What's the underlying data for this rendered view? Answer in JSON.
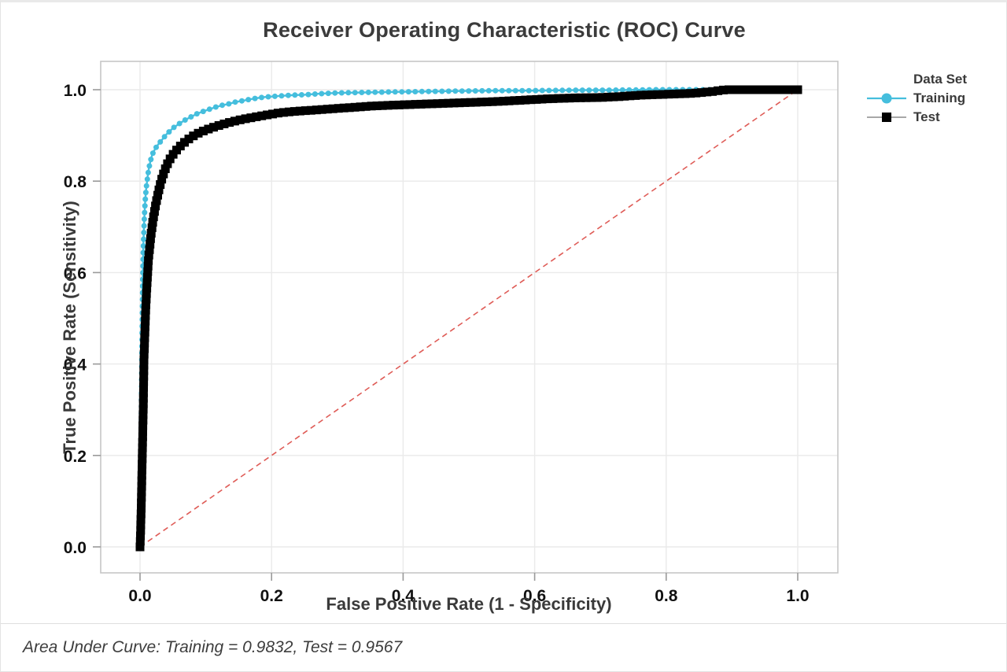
{
  "title": "Receiver Operating Characteristic (ROC) Curve",
  "footnote": "Area Under Curve: Training = 0.9832, Test = 0.9567",
  "legend": {
    "title": "Data Set",
    "entries": [
      {
        "label": "Training",
        "marker": "circle",
        "marker_color": "#45BEDD",
        "line_color": "#45BEDD"
      },
      {
        "label": "Test",
        "marker": "square",
        "marker_color": "#000000",
        "line_color": "#8C8C8C"
      }
    ]
  },
  "chart_data": {
    "type": "line",
    "title": "Receiver Operating Characteristic (ROC) Curve",
    "xlabel": "False Positive Rate (1 - Specificity)",
    "ylabel": "True Positive Rate (Sensitivity)",
    "xlim": [
      0,
      1
    ],
    "ylim": [
      0,
      1
    ],
    "grid": true,
    "legend_position": "right",
    "x_ticks": [
      0.0,
      0.2,
      0.4,
      0.6,
      0.8,
      1.0
    ],
    "y_ticks": [
      0.0,
      0.2,
      0.4,
      0.6,
      0.8,
      1.0
    ],
    "x_tick_labels": [
      "0.0",
      "0.2",
      "0.4",
      "0.6",
      "0.8",
      "1.0"
    ],
    "y_tick_labels": [
      "0.0",
      "0.2",
      "0.4",
      "0.6",
      "0.8",
      "1.0"
    ],
    "colors": {
      "grid": "#eaeaea",
      "panel_border": "#c6c6c6",
      "tick": "#9a9a9a",
      "tick_label": "#111111",
      "diagonal": "#DF5C57"
    },
    "reference_line": {
      "style": "dashed",
      "color": "#DF5C57",
      "from": [
        0,
        0
      ],
      "to": [
        1,
        1
      ]
    },
    "auc": {
      "Training": 0.9832,
      "Test": 0.9567
    },
    "series": [
      {
        "name": "Training",
        "marker": "circle",
        "marker_color": "#45BEDD",
        "line_color": "#45BEDD",
        "line_width": 2.4,
        "marker_size": 7,
        "marker_spacing": 8.5,
        "points": [
          [
            0,
            0
          ],
          [
            0.001,
            0.08
          ],
          [
            0.0015,
            0.18
          ],
          [
            0.002,
            0.28
          ],
          [
            0.0025,
            0.38
          ],
          [
            0.003,
            0.46
          ],
          [
            0.0035,
            0.52
          ],
          [
            0.004,
            0.58
          ],
          [
            0.0045,
            0.62
          ],
          [
            0.005,
            0.655
          ],
          [
            0.006,
            0.7
          ],
          [
            0.007,
            0.735
          ],
          [
            0.008,
            0.76
          ],
          [
            0.009,
            0.778
          ],
          [
            0.01,
            0.792
          ],
          [
            0.012,
            0.815
          ],
          [
            0.014,
            0.832
          ],
          [
            0.016,
            0.845
          ],
          [
            0.018,
            0.855
          ],
          [
            0.02,
            0.863
          ],
          [
            0.024,
            0.873
          ],
          [
            0.028,
            0.881
          ],
          [
            0.032,
            0.888
          ],
          [
            0.036,
            0.895
          ],
          [
            0.04,
            0.902
          ],
          [
            0.045,
            0.909
          ],
          [
            0.05,
            0.916
          ],
          [
            0.056,
            0.922
          ],
          [
            0.062,
            0.928
          ],
          [
            0.07,
            0.935
          ],
          [
            0.078,
            0.941
          ],
          [
            0.086,
            0.947
          ],
          [
            0.095,
            0.952
          ],
          [
            0.105,
            0.957
          ],
          [
            0.115,
            0.962
          ],
          [
            0.125,
            0.966
          ],
          [
            0.135,
            0.969
          ],
          [
            0.145,
            0.973
          ],
          [
            0.16,
            0.977
          ],
          [
            0.175,
            0.981
          ],
          [
            0.19,
            0.984
          ],
          [
            0.21,
            0.986
          ],
          [
            0.23,
            0.988
          ],
          [
            0.25,
            0.989
          ],
          [
            0.27,
            0.991
          ],
          [
            0.3,
            0.993
          ],
          [
            0.34,
            0.994
          ],
          [
            0.38,
            0.995
          ],
          [
            0.43,
            0.996
          ],
          [
            0.48,
            0.997
          ],
          [
            0.54,
            0.998
          ],
          [
            0.6,
            0.998
          ],
          [
            0.66,
            0.999
          ],
          [
            0.72,
            0.999
          ],
          [
            0.78,
            1
          ],
          [
            0.84,
            1
          ],
          [
            0.88,
            1
          ]
        ]
      },
      {
        "name": "Test",
        "marker": "square",
        "marker_color": "#000000",
        "line_color": "#8C8C8C",
        "line_width": 1.5,
        "marker_size": 11,
        "marker_spacing": 7,
        "points": [
          [
            0,
            0
          ],
          [
            0.001,
            0.04
          ],
          [
            0.002,
            0.1
          ],
          [
            0.003,
            0.17
          ],
          [
            0.004,
            0.24
          ],
          [
            0.005,
            0.31
          ],
          [
            0.0055,
            0.36
          ],
          [
            0.006,
            0.41
          ],
          [
            0.007,
            0.455
          ],
          [
            0.008,
            0.495
          ],
          [
            0.009,
            0.53
          ],
          [
            0.01,
            0.56
          ],
          [
            0.011,
            0.585
          ],
          [
            0.012,
            0.61
          ],
          [
            0.013,
            0.632
          ],
          [
            0.015,
            0.66
          ],
          [
            0.017,
            0.686
          ],
          [
            0.019,
            0.707
          ],
          [
            0.021,
            0.726
          ],
          [
            0.024,
            0.75
          ],
          [
            0.027,
            0.77
          ],
          [
            0.03,
            0.789
          ],
          [
            0.034,
            0.809
          ],
          [
            0.038,
            0.825
          ],
          [
            0.042,
            0.839
          ],
          [
            0.047,
            0.852
          ],
          [
            0.052,
            0.862
          ],
          [
            0.058,
            0.872
          ],
          [
            0.065,
            0.882
          ],
          [
            0.072,
            0.89
          ],
          [
            0.08,
            0.898
          ],
          [
            0.09,
            0.906
          ],
          [
            0.1,
            0.912
          ],
          [
            0.112,
            0.918
          ],
          [
            0.125,
            0.924
          ],
          [
            0.14,
            0.93
          ],
          [
            0.155,
            0.935
          ],
          [
            0.17,
            0.939
          ],
          [
            0.19,
            0.944
          ],
          [
            0.21,
            0.949
          ],
          [
            0.23,
            0.952
          ],
          [
            0.26,
            0.955
          ],
          [
            0.29,
            0.958
          ],
          [
            0.32,
            0.961
          ],
          [
            0.35,
            0.964
          ],
          [
            0.38,
            0.966
          ],
          [
            0.42,
            0.968
          ],
          [
            0.46,
            0.97
          ],
          [
            0.5,
            0.972
          ],
          [
            0.54,
            0.974
          ],
          [
            0.58,
            0.977
          ],
          [
            0.62,
            0.98
          ],
          [
            0.66,
            0.982
          ],
          [
            0.7,
            0.983
          ],
          [
            0.73,
            0.985
          ],
          [
            0.76,
            0.988
          ],
          [
            0.8,
            0.99
          ],
          [
            0.84,
            0.992
          ],
          [
            0.87,
            0.996
          ],
          [
            0.89,
            1
          ],
          [
            1,
            1
          ]
        ]
      }
    ]
  }
}
